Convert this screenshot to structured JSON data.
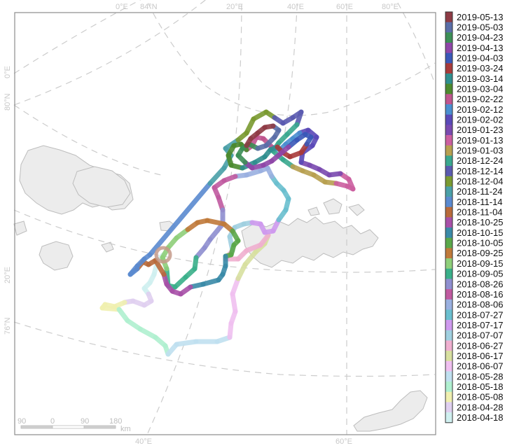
{
  "map": {
    "graticule_labels": {
      "top": [
        "0°E",
        "84°N",
        "20°E",
        "40°E",
        "60°E",
        "80°E"
      ],
      "left": [
        "0°E",
        "80°N",
        "20°E",
        "76°N"
      ],
      "bottom": [
        "40°E",
        "60°E"
      ]
    },
    "scale_bar": {
      "ticks": [
        "90",
        "0",
        "90",
        "180"
      ],
      "unit": "km"
    }
  },
  "legend": {
    "dates": [
      "2019-05-13",
      "2019-05-03",
      "2019-04-23",
      "2019-04-13",
      "2019-04-03",
      "2019-03-24",
      "2019-03-14",
      "2019-03-04",
      "2019-02-22",
      "2019-02-12",
      "2019-02-02",
      "2019-01-23",
      "2019-01-13",
      "2019-01-03",
      "2018-12-24",
      "2018-12-14",
      "2018-12-04",
      "2018-11-24",
      "2018-11-14",
      "2018-11-04",
      "2018-10-25",
      "2018-10-15",
      "2018-10-05",
      "2018-09-25",
      "2018-09-15",
      "2018-09-05",
      "2018-08-26",
      "2018-08-16",
      "2018-08-06",
      "2018-07-27",
      "2018-07-17",
      "2018-07-07",
      "2018-06-27",
      "2018-06-17",
      "2018-06-07",
      "2018-05-28",
      "2018-05-18",
      "2018-05-08",
      "2018-04-28",
      "2018-04-18"
    ],
    "colors": [
      "#8e3b45",
      "#5a6ea8",
      "#3c8f56",
      "#8f46a8",
      "#3a58b8",
      "#a83a3a",
      "#2f8f8f",
      "#4c8a2e",
      "#c0558f",
      "#4a8fd0",
      "#5a49b8",
      "#7a4ab0",
      "#cc5fa0",
      "#b8a050",
      "#3aa88f",
      "#5a5ab0",
      "#7a9a30",
      "#4aa0a8",
      "#5a8ad0",
      "#b86a3a",
      "#a850a8",
      "#3a8aa8",
      "#5aa84a",
      "#c07a3a",
      "#8fcf7a",
      "#3ab08a",
      "#8f8fd0",
      "#c05aa0",
      "#9ab0e0",
      "#6abfcf",
      "#cf9aef",
      "#a0d0e0",
      "#f0b0d0",
      "#d8e0a0",
      "#f0c0f0",
      "#c0e0f0",
      "#b0f0d0",
      "#f0f0b0",
      "#e0d0f0",
      "#d0f0f0"
    ]
  }
}
